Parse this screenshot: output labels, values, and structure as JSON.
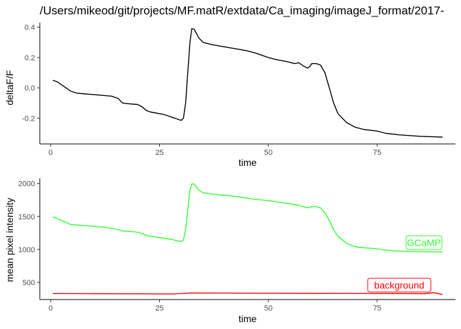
{
  "chart_data": [
    {
      "type": "line",
      "title": "/Users/mikeod/git/projects/MF.matR/extdata/Ca_imaging/imageJ_format/2017-",
      "xlabel": "time",
      "ylabel": "deltaF/F",
      "xlim": [
        -2.5,
        93
      ],
      "ylim": [
        -0.37,
        0.43
      ],
      "x_ticks": [
        0,
        25,
        50,
        75
      ],
      "x_tick_labels": [
        "0",
        "25",
        "50",
        "75"
      ],
      "y_ticks": [
        -0.2,
        0.0,
        0.2,
        0.4
      ],
      "y_tick_labels": [
        "-0.2",
        "0.0",
        "0.2",
        "0.4"
      ],
      "grid": false,
      "series": [
        {
          "color": "#000000",
          "points": [
            [
              0.5,
              0.05
            ],
            [
              1.5,
              0.04
            ],
            [
              2.5,
              0.02
            ],
            [
              3.5,
              0.0
            ],
            [
              4.5,
              -0.02
            ],
            [
              6,
              -0.035
            ],
            [
              8,
              -0.04
            ],
            [
              10,
              -0.045
            ],
            [
              12,
              -0.05
            ],
            [
              14,
              -0.055
            ],
            [
              15.5,
              -0.07
            ],
            [
              16.5,
              -0.1
            ],
            [
              18,
              -0.105
            ],
            [
              20,
              -0.11
            ],
            [
              21,
              -0.125
            ],
            [
              22,
              -0.15
            ],
            [
              23,
              -0.16
            ],
            [
              25,
              -0.17
            ],
            [
              26,
              -0.175
            ],
            [
              27,
              -0.185
            ],
            [
              28,
              -0.195
            ],
            [
              29,
              -0.205
            ],
            [
              30,
              -0.215
            ],
            [
              30.5,
              -0.2
            ],
            [
              31,
              -0.1
            ],
            [
              31.5,
              0.1
            ],
            [
              32,
              0.3
            ],
            [
              32.4,
              0.39
            ],
            [
              33,
              0.385
            ],
            [
              34,
              0.33
            ],
            [
              35,
              0.3
            ],
            [
              37,
              0.285
            ],
            [
              40,
              0.27
            ],
            [
              43,
              0.255
            ],
            [
              45,
              0.245
            ],
            [
              47,
              0.23
            ],
            [
              50,
              0.2
            ],
            [
              52,
              0.185
            ],
            [
              54,
              0.175
            ],
            [
              56,
              0.16
            ],
            [
              57,
              0.165
            ],
            [
              58,
              0.145
            ],
            [
              59,
              0.13
            ],
            [
              59.5,
              0.14
            ],
            [
              60,
              0.16
            ],
            [
              61,
              0.16
            ],
            [
              62,
              0.15
            ],
            [
              63,
              0.1
            ],
            [
              64,
              0.0
            ],
            [
              65,
              -0.1
            ],
            [
              66,
              -0.17
            ],
            [
              68,
              -0.23
            ],
            [
              70,
              -0.26
            ],
            [
              72,
              -0.275
            ],
            [
              75,
              -0.285
            ],
            [
              77,
              -0.3
            ],
            [
              80,
              -0.31
            ],
            [
              85,
              -0.32
            ],
            [
              90,
              -0.325
            ]
          ]
        }
      ]
    },
    {
      "type": "line",
      "xlabel": "time",
      "ylabel": "mean pixel intensity",
      "xlim": [
        -2.5,
        93
      ],
      "ylim": [
        240,
        2080
      ],
      "x_ticks": [
        0,
        25,
        50,
        75
      ],
      "x_tick_labels": [
        "0",
        "25",
        "50",
        "75"
      ],
      "y_ticks": [
        500,
        1000,
        1500,
        2000
      ],
      "y_tick_labels": [
        "500",
        "1000",
        "1500",
        "2000"
      ],
      "grid": false,
      "series": [
        {
          "name": "GCaMP",
          "color": "#33ff33",
          "points": [
            [
              0.5,
              1490
            ],
            [
              1.5,
              1470
            ],
            [
              2.5,
              1440
            ],
            [
              3.5,
              1410
            ],
            [
              4.5,
              1380
            ],
            [
              6,
              1370
            ],
            [
              8,
              1360
            ],
            [
              10,
              1350
            ],
            [
              12,
              1340
            ],
            [
              14,
              1320
            ],
            [
              15.5,
              1300
            ],
            [
              16.5,
              1280
            ],
            [
              18,
              1275
            ],
            [
              20,
              1260
            ],
            [
              21,
              1240
            ],
            [
              22,
              1210
            ],
            [
              23,
              1200
            ],
            [
              25,
              1180
            ],
            [
              26,
              1170
            ],
            [
              27,
              1160
            ],
            [
              28,
              1150
            ],
            [
              29,
              1130
            ],
            [
              30,
              1120
            ],
            [
              30.5,
              1140
            ],
            [
              31,
              1300
            ],
            [
              31.5,
              1600
            ],
            [
              32,
              1900
            ],
            [
              32.4,
              1995
            ],
            [
              33,
              1990
            ],
            [
              34,
              1900
            ],
            [
              35,
              1860
            ],
            [
              37,
              1840
            ],
            [
              40,
              1820
            ],
            [
              43,
              1800
            ],
            [
              45,
              1780
            ],
            [
              47,
              1760
            ],
            [
              50,
              1740
            ],
            [
              52,
              1720
            ],
            [
              54,
              1700
            ],
            [
              56,
              1680
            ],
            [
              57,
              1670
            ],
            [
              58,
              1650
            ],
            [
              59,
              1630
            ],
            [
              59.5,
              1640
            ],
            [
              60,
              1650
            ],
            [
              61,
              1650
            ],
            [
              62,
              1630
            ],
            [
              63,
              1560
            ],
            [
              64,
              1440
            ],
            [
              65,
              1300
            ],
            [
              66,
              1200
            ],
            [
              68,
              1090
            ],
            [
              70,
              1040
            ],
            [
              72,
              1025
            ],
            [
              75,
              1010
            ],
            [
              77,
              990
            ],
            [
              80,
              975
            ],
            [
              85,
              965
            ],
            [
              90,
              960
            ]
          ]
        },
        {
          "name": "background",
          "color": "#ff0000",
          "points": [
            [
              0.5,
              330
            ],
            [
              10,
              328
            ],
            [
              20,
              326
            ],
            [
              28,
              325
            ],
            [
              30,
              330
            ],
            [
              32,
              340
            ],
            [
              40,
              338
            ],
            [
              50,
              336
            ],
            [
              60,
              334
            ],
            [
              70,
              333
            ],
            [
              80,
              330
            ],
            [
              86,
              328
            ],
            [
              88,
              345
            ],
            [
              90,
              315
            ]
          ]
        }
      ]
    }
  ]
}
